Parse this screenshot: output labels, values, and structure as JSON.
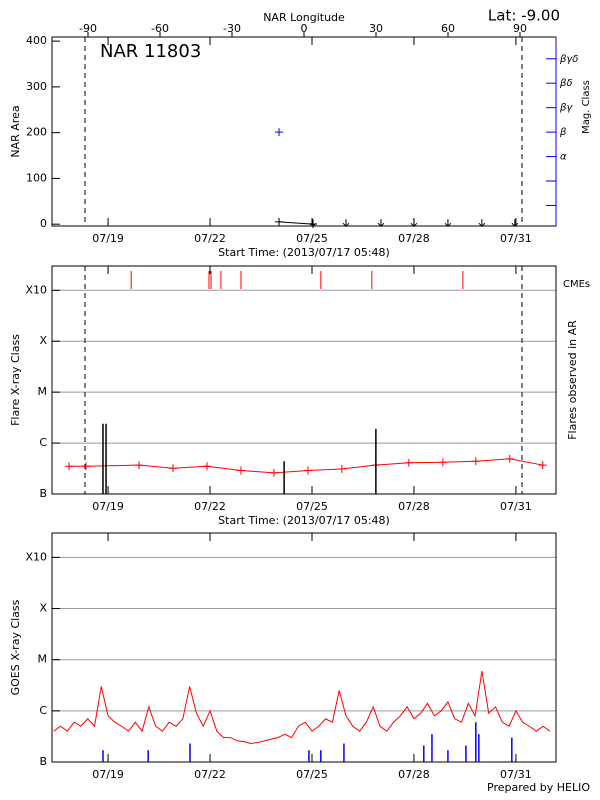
{
  "latitude": "Lat:  -9.00",
  "footer": "Prepared by HELIO",
  "chart_data": [
    {
      "type": "scatter",
      "title": "NAR 11803",
      "x2label": "NAR Longitude",
      "ylabel": "NAR Area",
      "y2label": "Mag. Class",
      "xlabel": "Start Time: (2013/07/17 05:48)",
      "xlim": [
        17.35,
        32.18
      ],
      "xticks": [
        {
          "value": 19,
          "label": "07/19"
        },
        {
          "value": 22,
          "label": "07/22"
        },
        {
          "value": 25,
          "label": "07/25"
        },
        {
          "value": 28,
          "label": "07/28"
        },
        {
          "value": 31,
          "label": "07/31"
        }
      ],
      "x2lim": [
        -105,
        105
      ],
      "x2ticks": [
        -90,
        -60,
        -30,
        0,
        30,
        60,
        90
      ],
      "ylim": [
        -4,
        409
      ],
      "yticks": [
        0,
        100,
        200,
        300,
        400
      ],
      "y2lim": [
        0.16,
        7.89
      ],
      "y2ticks": [
        {
          "value": 1,
          "label": null
        },
        {
          "value": 2,
          "label": null
        },
        {
          "value": 3,
          "label": "α"
        },
        {
          "value": 4,
          "label": "β"
        },
        {
          "value": 5,
          "label": "βγ"
        },
        {
          "value": 6,
          "label": "βδ"
        },
        {
          "value": 7,
          "label": "βγδ"
        }
      ],
      "y2color": "#0000ff",
      "limbs": [
        18.32,
        31.18
      ],
      "series": [
        {
          "kind": "line",
          "marker": "plus",
          "color": "#000000",
          "x": [
            24.03,
            25.03
          ],
          "values": [
            5,
            0
          ]
        },
        {
          "kind": "arrows",
          "color": "#000000",
          "x": [
            25.03,
            26.0,
            27.03,
            28.0,
            29.0,
            30.0,
            30.97
          ],
          "values": [
            0,
            0,
            0,
            0,
            0,
            0,
            0
          ]
        },
        {
          "kind": "markers",
          "marker": "plus",
          "color": "#0000ff",
          "axis": "y2",
          "x": [
            24.03
          ],
          "values": [
            4
          ]
        }
      ]
    },
    {
      "type": "line",
      "ylabel": "Flare X-ray Class",
      "y2label": "Flares observed in AR",
      "xlabel": "Start Time: (2013/07/17 05:48)",
      "xlim": [
        17.35,
        32.18
      ],
      "xticks": [
        {
          "value": 19,
          "label": "07/19"
        },
        {
          "value": 22,
          "label": "07/22"
        },
        {
          "value": 25,
          "label": "07/25"
        },
        {
          "value": 28,
          "label": "07/28"
        },
        {
          "value": 31,
          "label": "07/31"
        }
      ],
      "log_scale": true,
      "ylim": [
        1e-07,
        0.003
      ],
      "yticks": [
        {
          "value": 1e-07,
          "label": "B"
        },
        {
          "value": 1e-06,
          "label": "C"
        },
        {
          "value": 1e-05,
          "label": "M"
        },
        {
          "value": 0.0001,
          "label": "X"
        },
        {
          "value": 0.001,
          "label": "X10"
        }
      ],
      "grid": true,
      "limbs": [
        18.32,
        31.18
      ],
      "events": {
        "name": "CMEs",
        "color": "#ff0000",
        "x": [
          19.68,
          21.97,
          22.03,
          22.32,
          22.91,
          25.26,
          26.76,
          29.44
        ]
      },
      "series": [
        {
          "kind": "line",
          "marker": "plus",
          "color": "#ff0000",
          "x": [
            17.85,
            18.35,
            19.91,
            20.91,
            21.91,
            22.91,
            23.88,
            24.88,
            25.88,
            26.88,
            27.85,
            28.85,
            29.82,
            30.82,
            31.79
          ],
          "values": [
            3.5e-07,
            3.5e-07,
            3.7e-07,
            3.2e-07,
            3.5e-07,
            2.9e-07,
            2.6e-07,
            2.9e-07,
            3.1e-07,
            3.7e-07,
            4.1e-07,
            4.2e-07,
            4.4e-07,
            4.9e-07,
            3.7e-07
          ]
        },
        {
          "kind": "bars",
          "color": "#000000",
          "x": [
            18.85,
            18.94,
            24.18,
            26.88
          ],
          "values": [
            2.4e-06,
            2.4e-06,
            4.4e-07,
            1.9e-06
          ]
        }
      ]
    },
    {
      "type": "line",
      "ylabel": "GOES X-ray Class",
      "xlim": [
        17.35,
        32.18
      ],
      "xticks": [
        {
          "value": 19,
          "label": "07/19"
        },
        {
          "value": 22,
          "label": "07/22"
        },
        {
          "value": 25,
          "label": "07/25"
        },
        {
          "value": 28,
          "label": "07/28"
        },
        {
          "value": 31,
          "label": "07/31"
        }
      ],
      "log_scale": true,
      "ylim": [
        1e-07,
        0.003
      ],
      "yticks": [
        {
          "value": 1e-07,
          "label": "B"
        },
        {
          "value": 1e-06,
          "label": "C"
        },
        {
          "value": 1e-05,
          "label": "M"
        },
        {
          "value": 0.0001,
          "label": "X"
        },
        {
          "value": 0.001,
          "label": "X10"
        }
      ],
      "grid": true,
      "series": [
        {
          "kind": "line",
          "color": "#ff0000",
          "x": [
            17.4,
            17.6,
            17.8,
            18,
            18.2,
            18.4,
            18.6,
            18.8,
            19,
            19.2,
            19.4,
            19.6,
            19.8,
            20,
            20.2,
            20.4,
            20.6,
            20.8,
            21,
            21.2,
            21.4,
            21.6,
            21.8,
            22,
            22.2,
            22.4,
            22.6,
            22.8,
            23,
            23.2,
            23.4,
            23.6,
            23.8,
            24,
            24.2,
            24.4,
            24.6,
            24.8,
            25,
            25.2,
            25.4,
            25.6,
            25.8,
            26,
            26.2,
            26.4,
            26.6,
            26.8,
            27,
            27.2,
            27.4,
            27.6,
            27.8,
            28,
            28.2,
            28.4,
            28.6,
            28.8,
            29,
            29.2,
            29.4,
            29.6,
            29.8,
            30,
            30.2,
            30.4,
            30.6,
            30.8,
            31,
            31.2,
            31.4,
            31.6,
            31.8,
            32
          ],
          "values": [
            4e-07,
            5e-07,
            4e-07,
            6e-07,
            5e-07,
            7e-07,
            5e-07,
            3e-06,
            8e-07,
            6e-07,
            5e-07,
            4e-07,
            6e-07,
            4e-07,
            1.2e-06,
            5e-07,
            4e-07,
            6e-07,
            5e-07,
            7e-07,
            3e-06,
            9e-07,
            5e-07,
            1e-06,
            4e-07,
            3e-07,
            3e-07,
            2.6e-07,
            2.5e-07,
            2.3e-07,
            2.4e-07,
            2.6e-07,
            2.8e-07,
            3e-07,
            3.5e-07,
            3e-07,
            5e-07,
            6e-07,
            4e-07,
            5e-07,
            7e-07,
            6e-07,
            2.5e-06,
            8e-07,
            5e-07,
            4e-07,
            6e-07,
            1.2e-06,
            5e-07,
            4e-07,
            6e-07,
            8e-07,
            1.2e-06,
            7e-07,
            9e-07,
            1.4e-06,
            8e-07,
            1e-06,
            1.5e-06,
            7e-07,
            6e-07,
            1.4e-06,
            8e-07,
            6e-06,
            9e-07,
            1.2e-06,
            6e-07,
            5e-07,
            1e-06,
            6e-07,
            5e-07,
            4e-07,
            5e-07,
            4e-07
          ]
        },
        {
          "kind": "bars",
          "color": "#0000ff",
          "x": [
            18.85,
            20.18,
            21.41,
            24.91,
            25.26,
            25.94,
            28.29,
            28.53,
            29.0,
            29.53,
            29.82,
            29.91,
            30.88
          ],
          "values": [
            1.7e-07,
            1.7e-07,
            2.3e-07,
            1.7e-07,
            1.7e-07,
            2.3e-07,
            2.1e-07,
            3.5e-07,
            1.7e-07,
            2.1e-07,
            6e-07,
            3.5e-07,
            3e-07
          ]
        }
      ]
    }
  ]
}
